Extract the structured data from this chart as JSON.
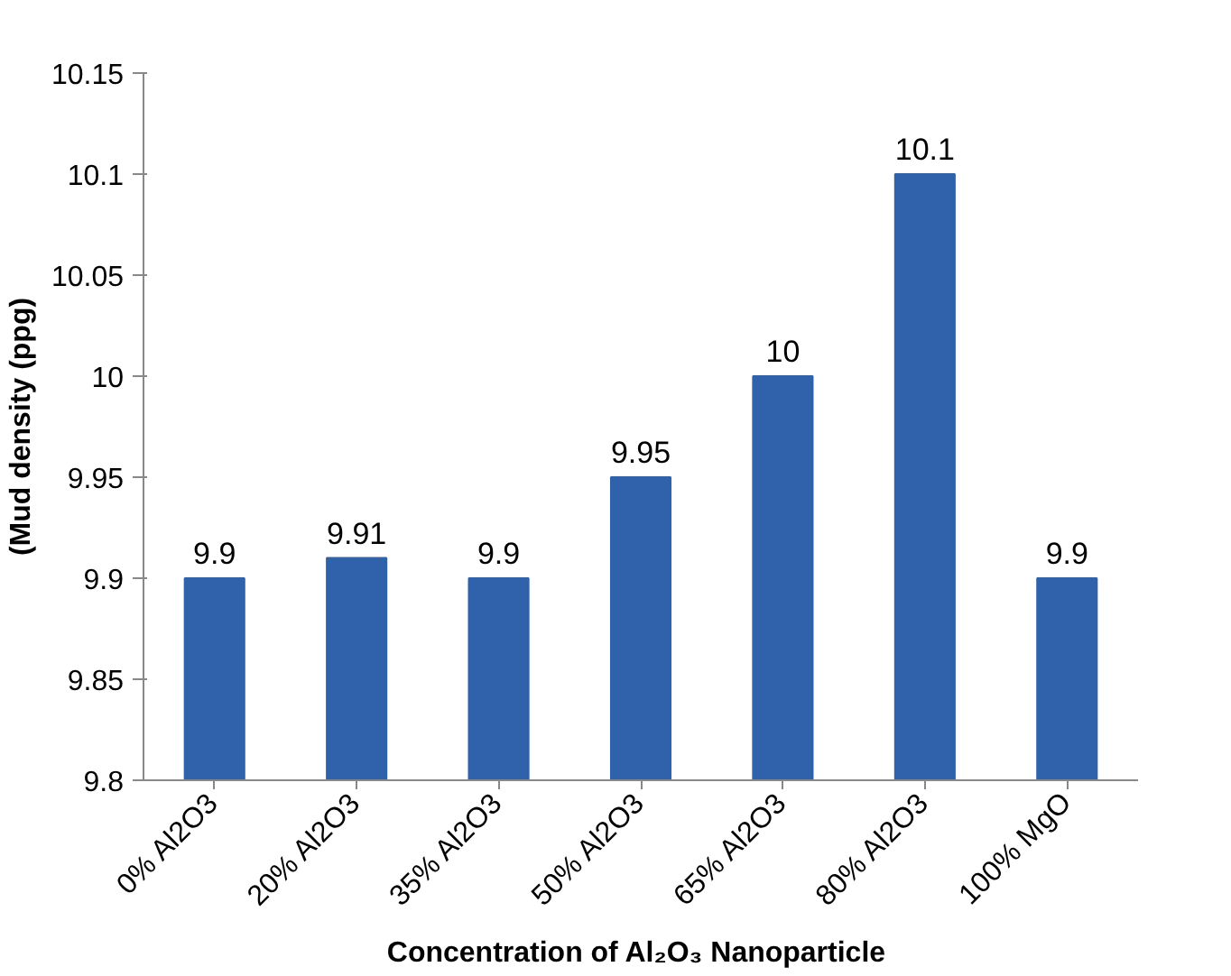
{
  "chart_data": {
    "type": "bar",
    "xlabel": "Concentration of  Al₂O₃ Nanoparticle",
    "ylabel": "(Mud density (ppg)",
    "categories": [
      "0% Al2O3",
      "20% Al2O3",
      "35% Al2O3",
      "50% Al2O3",
      "65% Al2O3",
      "80% Al2O3",
      "100% MgO"
    ],
    "values": [
      9.9,
      9.91,
      9.9,
      9.95,
      10,
      10.1,
      9.9
    ],
    "color": "#2f62ab",
    "ylim": [
      9.8,
      10.15
    ],
    "yticks": [
      9.8,
      9.85,
      9.9,
      9.95,
      10,
      10.05,
      10.1,
      10.15
    ],
    "data_labels": true,
    "grid": false
  }
}
